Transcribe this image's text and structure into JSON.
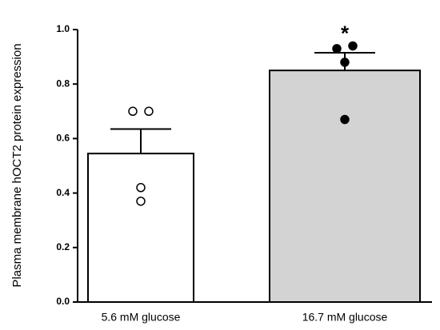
{
  "chart_data": {
    "type": "bar",
    "ylabel": "Plasma membrane hOCT2 protein expression",
    "categories": [
      "5.6 mM glucose",
      "16.7 mM glucose"
    ],
    "values": [
      0.545,
      0.85
    ],
    "errors": [
      0.09,
      0.065
    ],
    "colors": [
      "#ffffff",
      "#d3d3d3"
    ],
    "points": [
      [
        0.7,
        0.7,
        0.42,
        0.37
      ],
      [
        0.93,
        0.94,
        0.88,
        0.67
      ]
    ],
    "point_colors": [
      "#ffffff",
      "#000000"
    ],
    "annotations": [
      {
        "text": "*",
        "category": "16.7 mM glucose"
      }
    ],
    "ylim": [
      0,
      1.0
    ],
    "yticks": [
      {
        "value": 0,
        "label": "0.0"
      },
      0.2,
      0.4,
      0.6,
      0.8,
      {
        "value": 1.0,
        "label": "1.0"
      }
    ]
  }
}
